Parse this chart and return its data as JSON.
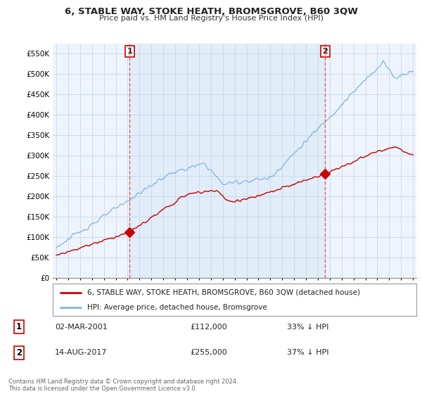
{
  "title": "6, STABLE WAY, STOKE HEATH, BROMSGROVE, B60 3QW",
  "subtitle": "Price paid vs. HM Land Registry's House Price Index (HPI)",
  "ylabel_ticks": [
    "£0",
    "£50K",
    "£100K",
    "£150K",
    "£200K",
    "£250K",
    "£300K",
    "£350K",
    "£400K",
    "£450K",
    "£500K",
    "£550K"
  ],
  "ylim": [
    0,
    575000
  ],
  "ytick_vals": [
    0,
    50000,
    100000,
    150000,
    200000,
    250000,
    300000,
    350000,
    400000,
    450000,
    500000,
    550000
  ],
  "x_start_year": 1995,
  "x_end_year": 2025,
  "hpi_color": "#7EB4E0",
  "hpi_fill_color": "#D6E8F7",
  "price_color": "#CC0000",
  "vline_color": "#E05050",
  "marker1_year": 2001.17,
  "marker1_price": 112000,
  "marker2_year": 2017.62,
  "marker2_price": 255000,
  "legend_label1": "6, STABLE WAY, STOKE HEATH, BROMSGROVE, B60 3QW (detached house)",
  "legend_label2": "HPI: Average price, detached house, Bromsgrove",
  "annotation1_num": "1",
  "annotation1_date": "02-MAR-2001",
  "annotation1_price": "£112,000",
  "annotation1_hpi": "33% ↓ HPI",
  "annotation2_num": "2",
  "annotation2_date": "14-AUG-2017",
  "annotation2_price": "£255,000",
  "annotation2_hpi": "37% ↓ HPI",
  "footer": "Contains HM Land Registry data © Crown copyright and database right 2024.\nThis data is licensed under the Open Government Licence v3.0.",
  "background_color": "#ffffff"
}
